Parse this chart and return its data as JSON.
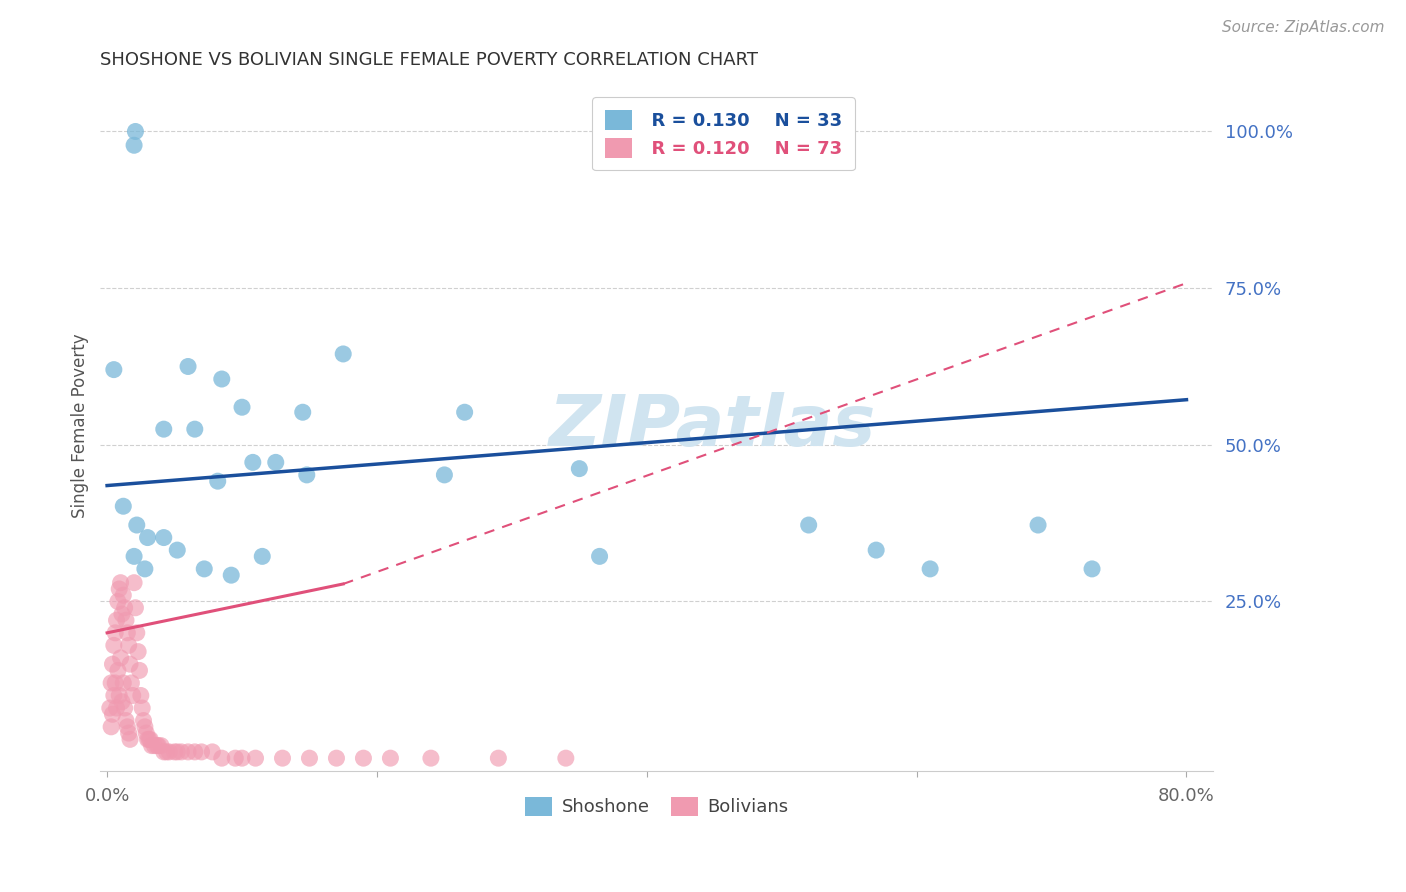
{
  "title": "SHOSHONE VS BOLIVIAN SINGLE FEMALE POVERTY CORRELATION CHART",
  "source": "Source: ZipAtlas.com",
  "ylabel": "Single Female Poverty",
  "xlim": [
    -0.005,
    0.82
  ],
  "ylim": [
    -0.02,
    1.08
  ],
  "legend_R_shoshone": "R = 0.130",
  "legend_N_shoshone": "N = 33",
  "legend_R_bolivian": "R = 0.120",
  "legend_N_bolivian": "N = 73",
  "shoshone_color": "#7ab8d9",
  "bolivian_color": "#f09ab0",
  "shoshone_line_color": "#1a4f9c",
  "bolivian_line_color": "#e0507a",
  "watermark_color": "#d0e4f0",
  "background_color": "#ffffff",
  "grid_color": "#d0d0d0",
  "shoshone_x": [
    0.021,
    0.175,
    0.005,
    0.06,
    0.085,
    0.1,
    0.042,
    0.065,
    0.108,
    0.125,
    0.082,
    0.148,
    0.012,
    0.022,
    0.03,
    0.042,
    0.052,
    0.02,
    0.028,
    0.072,
    0.092,
    0.115,
    0.25,
    0.265,
    0.145,
    0.35,
    0.365,
    0.52,
    0.57,
    0.61,
    0.69,
    0.73,
    0.02
  ],
  "shoshone_y": [
    1.0,
    0.645,
    0.62,
    0.625,
    0.605,
    0.56,
    0.525,
    0.525,
    0.472,
    0.472,
    0.442,
    0.452,
    0.402,
    0.372,
    0.352,
    0.352,
    0.332,
    0.322,
    0.302,
    0.302,
    0.292,
    0.322,
    0.452,
    0.552,
    0.552,
    0.462,
    0.322,
    0.372,
    0.332,
    0.302,
    0.372,
    0.302,
    0.978
  ],
  "bolivian_x": [
    0.002,
    0.003,
    0.003,
    0.004,
    0.004,
    0.005,
    0.005,
    0.006,
    0.006,
    0.007,
    0.007,
    0.008,
    0.008,
    0.009,
    0.009,
    0.01,
    0.01,
    0.011,
    0.011,
    0.012,
    0.012,
    0.013,
    0.013,
    0.014,
    0.014,
    0.015,
    0.015,
    0.016,
    0.016,
    0.017,
    0.017,
    0.018,
    0.019,
    0.02,
    0.021,
    0.022,
    0.023,
    0.024,
    0.025,
    0.026,
    0.027,
    0.028,
    0.029,
    0.03,
    0.031,
    0.032,
    0.033,
    0.035,
    0.037,
    0.038,
    0.04,
    0.042,
    0.044,
    0.046,
    0.05,
    0.052,
    0.055,
    0.06,
    0.065,
    0.07,
    0.078,
    0.085,
    0.095,
    0.1,
    0.11,
    0.13,
    0.15,
    0.17,
    0.19,
    0.21,
    0.24,
    0.29,
    0.34
  ],
  "bolivian_y": [
    0.08,
    0.12,
    0.05,
    0.15,
    0.07,
    0.18,
    0.1,
    0.2,
    0.12,
    0.22,
    0.08,
    0.25,
    0.14,
    0.27,
    0.1,
    0.28,
    0.16,
    0.23,
    0.09,
    0.26,
    0.12,
    0.24,
    0.08,
    0.22,
    0.06,
    0.2,
    0.05,
    0.18,
    0.04,
    0.15,
    0.03,
    0.12,
    0.1,
    0.28,
    0.24,
    0.2,
    0.17,
    0.14,
    0.1,
    0.08,
    0.06,
    0.05,
    0.04,
    0.03,
    0.03,
    0.03,
    0.02,
    0.02,
    0.02,
    0.02,
    0.02,
    0.01,
    0.01,
    0.01,
    0.01,
    0.01,
    0.01,
    0.01,
    0.01,
    0.01,
    0.01,
    0.0,
    0.0,
    0.0,
    0.0,
    0.0,
    0.0,
    0.0,
    0.0,
    0.0,
    0.0,
    0.0,
    0.0
  ],
  "blue_line": {
    "x": [
      0.0,
      0.8
    ],
    "y": [
      0.435,
      0.572
    ]
  },
  "pink_solid": {
    "x": [
      0.0,
      0.175
    ],
    "y": [
      0.2,
      0.278
    ]
  },
  "pink_dashed": {
    "x": [
      0.175,
      0.8
    ],
    "y": [
      0.278,
      0.758
    ]
  }
}
